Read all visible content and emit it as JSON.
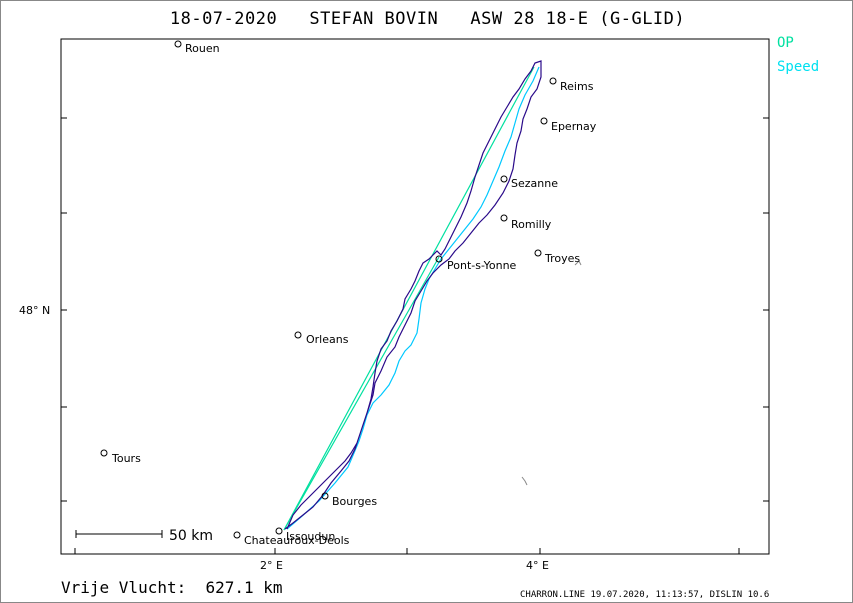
{
  "header": {
    "title": "18-07-2020   STEFAN BOVIN   ASW 28 18-E (G-GLID)"
  },
  "legend": {
    "op": "OP",
    "speed": "Speed",
    "op_color": "#00e0a0",
    "speed_color": "#00e0f0"
  },
  "axes": {
    "lat_label": "48° N",
    "lon_labels": [
      "2° E",
      "4° E"
    ]
  },
  "cities": [
    {
      "name": "Rouen"
    },
    {
      "name": "Reims"
    },
    {
      "name": "Epernay"
    },
    {
      "name": "Sezanne"
    },
    {
      "name": "Romilly"
    },
    {
      "name": "Troyes"
    },
    {
      "name": "Pont-s-Yonne"
    },
    {
      "name": "Orleans"
    },
    {
      "name": "Tours"
    },
    {
      "name": "Bourges"
    },
    {
      "name": "Issoudun"
    },
    {
      "name": "Chateauroux-Deols"
    }
  ],
  "scale_bar": {
    "label": "50  km"
  },
  "track_colors": {
    "track": "#2a0a8a",
    "speed": "#00c8ff",
    "op": "#00e0a0"
  },
  "footer": {
    "distance": "Vrije Vlucht:  627.1 km",
    "credit": "CHARRON.LINE 19.07.2020, 11:13:57, DISLIN 10.6"
  }
}
